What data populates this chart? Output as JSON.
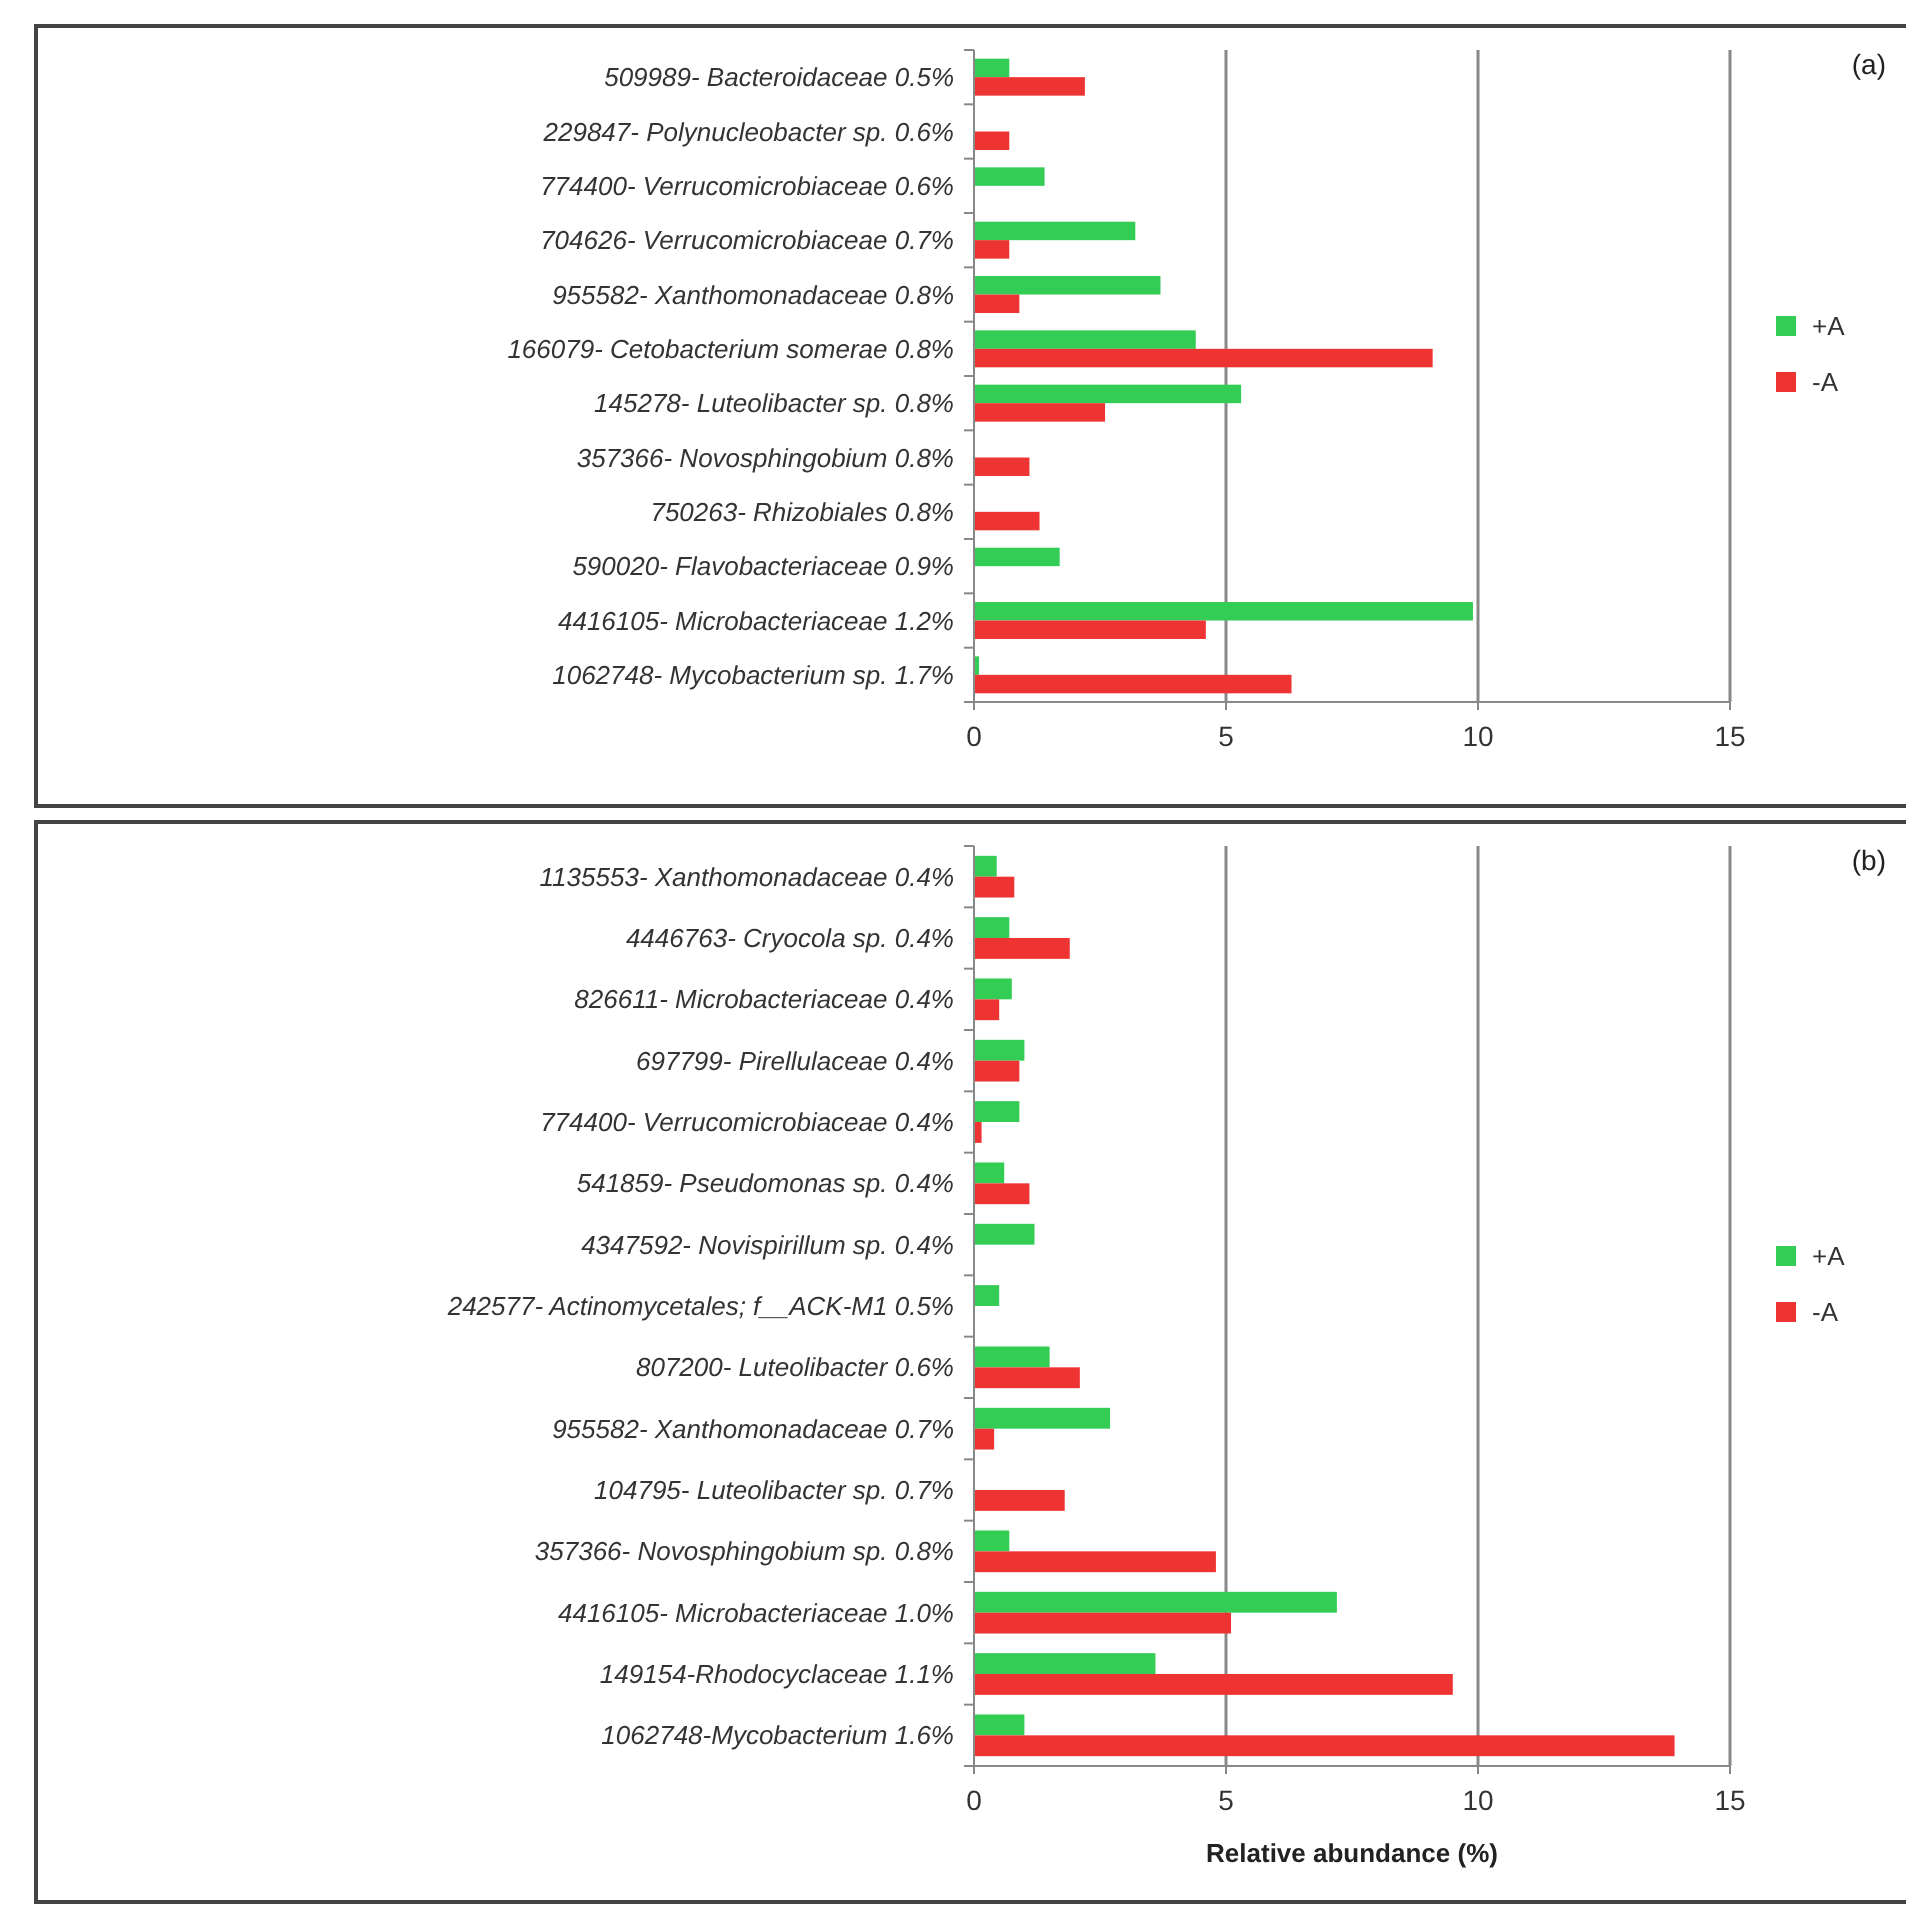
{
  "chart_data": [
    {
      "type": "bar",
      "orientation": "horizontal",
      "categories": [
        "509989- Bacteroidaceae 0.5%",
        "229847- Polynucleobacter sp. 0.6%",
        "774400- Verrucomicrobiaceae 0.6%",
        "704626- Verrucomicrobiaceae 0.7%",
        "955582- Xanthomonadaceae 0.8%",
        "166079- Cetobacterium somerae 0.8%",
        "145278- Luteolibacter sp. 0.8%",
        "357366- Novosphingobium 0.8%",
        "750263- Rhizobiales 0.8%",
        "590020- Flavobacteriaceae 0.9%",
        "4416105- Microbacteriaceae 1.2%",
        "1062748- Mycobacterium sp. 1.7%"
      ],
      "series": [
        {
          "name": "+A",
          "color": "#33cc55",
          "values": [
            0.7,
            null,
            1.4,
            3.2,
            3.7,
            4.4,
            5.3,
            null,
            null,
            1.7,
            9.9,
            0.1
          ]
        },
        {
          "name": "-A",
          "color": "#ee3333",
          "values": [
            2.2,
            0.7,
            null,
            0.7,
            0.9,
            9.1,
            2.6,
            1.1,
            1.3,
            null,
            4.6,
            6.3
          ]
        }
      ],
      "xlim": [
        0,
        15
      ],
      "xticks": [
        0,
        5,
        10,
        15
      ],
      "grid": "x",
      "legend": "right",
      "annotations": [
        "(a)"
      ]
    },
    {
      "type": "bar",
      "orientation": "horizontal",
      "categories": [
        "1135553- Xanthomonadaceae 0.4%",
        "4446763- Cryocola sp. 0.4%",
        "826611- Microbacteriaceae 0.4%",
        "697799- Pirellulaceae 0.4%",
        "774400- Verrucomicrobiaceae 0.4%",
        "541859- Pseudomonas sp. 0.4%",
        "4347592- Novispirillum sp. 0.4%",
        "242577- Actinomycetales; f__ACK-M1 0.5%",
        "807200- Luteolibacter 0.6%",
        "955582- Xanthomonadaceae 0.7%",
        "104795- Luteolibacter sp. 0.7%",
        "357366- Novosphingobium sp. 0.8%",
        "4416105- Microbacteriaceae 1.0%",
        "149154-Rhodocyclaceae 1.1%",
        "1062748-Mycobacterium 1.6%"
      ],
      "series": [
        {
          "name": "+A",
          "color": "#33cc55",
          "values": [
            0.45,
            0.7,
            0.75,
            1.0,
            0.9,
            0.6,
            1.2,
            0.5,
            1.5,
            2.7,
            null,
            0.7,
            7.2,
            3.6,
            1.0
          ]
        },
        {
          "name": "-A",
          "color": "#ee3333",
          "values": [
            0.8,
            1.9,
            0.5,
            0.9,
            0.15,
            1.1,
            null,
            null,
            2.1,
            0.4,
            1.8,
            4.8,
            5.1,
            9.5,
            13.9
          ]
        }
      ],
      "xlim": [
        0,
        15
      ],
      "xticks": [
        0,
        5,
        10,
        15
      ],
      "xlabel": "Relative abundance (%)",
      "grid": "x",
      "legend": "right",
      "annotations": [
        "(b)"
      ]
    }
  ]
}
